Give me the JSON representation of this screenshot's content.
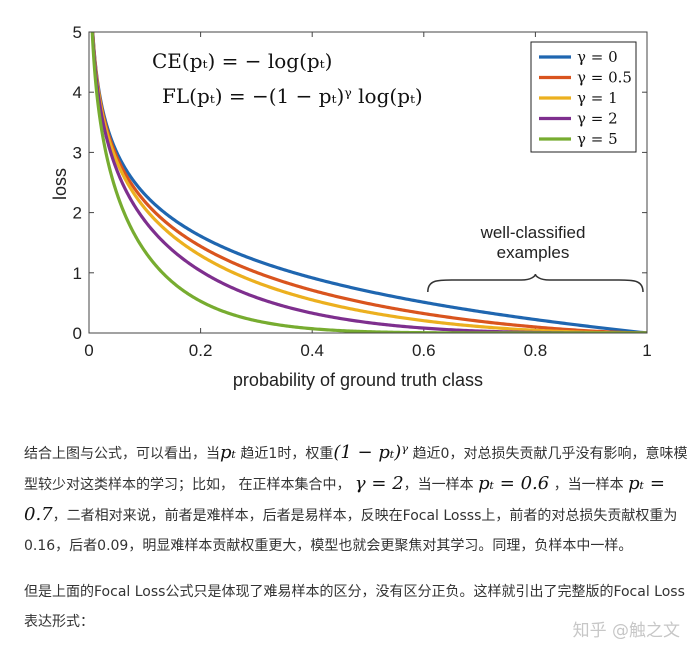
{
  "chart_data": {
    "type": "line",
    "title": "",
    "xlabel": "probability of ground truth class",
    "ylabel": "loss",
    "xlim": [
      0,
      1
    ],
    "ylim": [
      0,
      5
    ],
    "xticks": [
      "0",
      "0.2",
      "0.4",
      "0.6",
      "0.8",
      "1"
    ],
    "yticks": [
      "0",
      "1",
      "2",
      "3",
      "4",
      "5"
    ],
    "formula_ce": "CE(pₜ) = − log(pₜ)",
    "formula_fl": "FL(pₜ) = −(1 − pₜ)ᵞ log(pₜ)",
    "annotation": [
      "well-classified",
      "examples"
    ],
    "annotation_range": [
      0.6,
      1.0
    ],
    "series": [
      {
        "name": "γ = 0",
        "gamma": 0,
        "color": "#1f66b0"
      },
      {
        "name": "γ = 0.5",
        "gamma": 0.5,
        "color": "#d9541e"
      },
      {
        "name": "γ = 1",
        "gamma": 1,
        "color": "#ecb01f"
      },
      {
        "name": "γ = 2",
        "gamma": 2,
        "color": "#7e2f8e"
      },
      {
        "name": "γ = 5",
        "gamma": 5,
        "color": "#77ac30"
      }
    ]
  },
  "article": {
    "p1_a": "结合上图与公式，可以看出，当",
    "p1_m1": "pₜ",
    "p1_b": "趋近1时，权重",
    "p1_m2": "(1 − pₜ)ᵞ",
    "p1_c": "趋近0，对总损失贡献几乎没有影响，意味模型较少对这类样本的学习；比如， 在正样本集合中，",
    "p1_m3": "γ = 2",
    "p1_d": "，当一样本",
    "p1_m4": "pₜ = 0.6",
    "p1_e": "，当一样本",
    "p1_m5": "pₜ = 0.7",
    "p1_f": "，二者相对来说，前者是难样本，后者是易样本，反映在Focal Losss上，前者的对总损失贡献权重为0.16，后者0.09，明显难样本贡献权重更大，模型也就会更聚焦对其学习。同理，负样本中一样。",
    "p2": "但是上面的Focal Loss公式只是体现了难易样本的区分，没有区分正负。这样就引出了完整版的Focal Loss表达形式："
  },
  "watermark": "知乎 @触之文"
}
